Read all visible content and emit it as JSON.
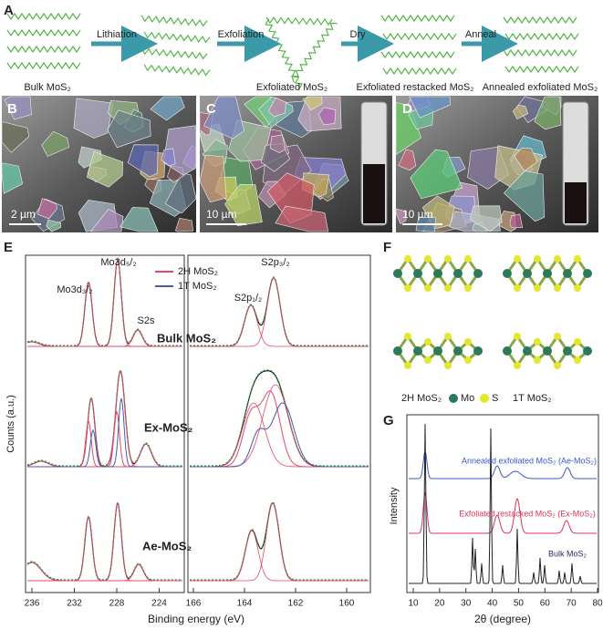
{
  "panel_a": {
    "label": "A",
    "steps": [
      "Lithiation",
      "Exfoliation",
      "Dry",
      "Anneal"
    ],
    "captions": [
      "Bulk MoS₂",
      "Exfoliated MoS₂",
      "Exfoliated restacked MoS₂",
      "Annealed exfoliated MoS₂"
    ]
  },
  "panel_b": {
    "label": "B",
    "scale_bar": "2 µm"
  },
  "panel_c": {
    "label": "C",
    "scale_bar": "10 µm"
  },
  "panel_d": {
    "label": "D",
    "scale_bar": "10 µm"
  },
  "panel_e": {
    "label": "E",
    "y_label": "Counts (a.u.)",
    "x_label": "Binding energy (eV)",
    "peaks": [
      "Mo3d₃/₂",
      "Mo3d₅/₂",
      "S2s",
      "S2p₁/₂",
      "S2p₃/₂"
    ],
    "legend": [
      "2H MoS₂",
      "1T MoS₂"
    ],
    "samples": [
      "Bulk MoS₂",
      "Ex-MoS₂",
      "Ae-MoS₂"
    ],
    "left_ticks": [
      236,
      232,
      228,
      224
    ],
    "right_ticks": [
      166,
      164,
      162,
      160
    ]
  },
  "panel_f": {
    "label": "F",
    "labels": [
      "2H MoS₂",
      "Mo",
      "S",
      "1T MoS₂"
    ]
  },
  "panel_g": {
    "label": "G",
    "y_label": "Intensity",
    "x_label": "2θ (degree)",
    "xticks": [
      10,
      20,
      30,
      40,
      50,
      60,
      70,
      80
    ],
    "series": [
      "Annealed exfoliated MoS₂ (Ae-MoS₂)",
      "Exfoliated restacked MoS₂ (Ex-MoS₂)",
      "Bulk MoS₂"
    ]
  }
}
